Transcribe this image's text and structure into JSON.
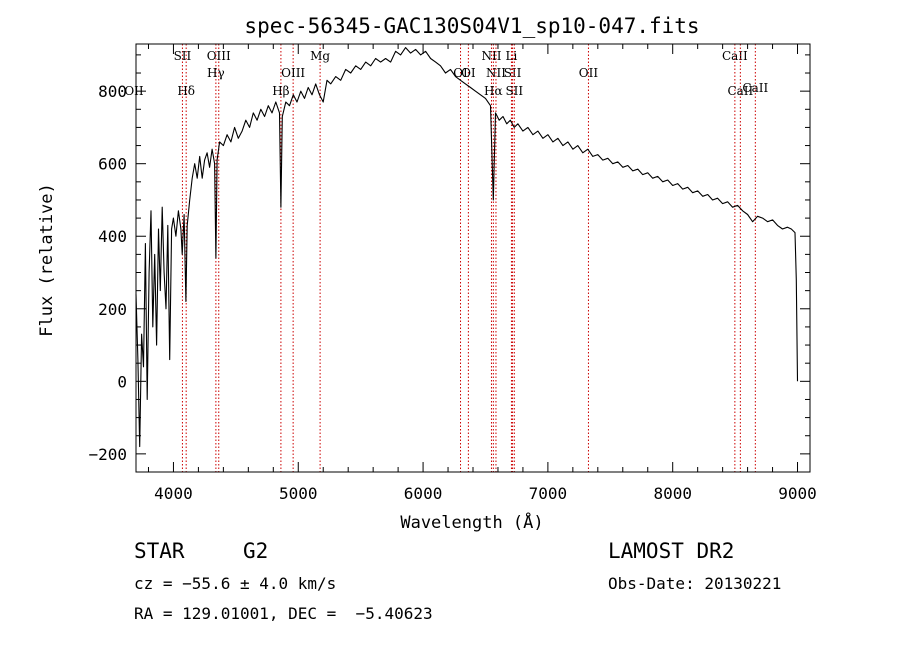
{
  "chart_data": {
    "type": "line",
    "title": "spec-56345-GAC130S04V1_sp10-047.fits",
    "xlabel": "Wavelength (Å)",
    "ylabel": "Flux (relative)",
    "xlim": [
      3700,
      9100
    ],
    "ylim": [
      -250,
      930
    ],
    "xticks": [
      4000,
      5000,
      6000,
      7000,
      8000,
      9000
    ],
    "yticks": [
      -200,
      0,
      200,
      400,
      600,
      800
    ],
    "grid": false,
    "series": [
      {
        "points": [
          [
            3700,
            240
          ],
          [
            3715,
            60
          ],
          [
            3730,
            -180
          ],
          [
            3745,
            130
          ],
          [
            3760,
            40
          ],
          [
            3775,
            380
          ],
          [
            3790,
            -50
          ],
          [
            3805,
            300
          ],
          [
            3820,
            470
          ],
          [
            3835,
            150
          ],
          [
            3850,
            350
          ],
          [
            3865,
            100
          ],
          [
            3880,
            420
          ],
          [
            3895,
            250
          ],
          [
            3910,
            480
          ],
          [
            3925,
            300
          ],
          [
            3940,
            200
          ],
          [
            3955,
            430
          ],
          [
            3970,
            60
          ],
          [
            3985,
            420
          ],
          [
            4000,
            450
          ],
          [
            4020,
            400
          ],
          [
            4040,
            470
          ],
          [
            4060,
            420
          ],
          [
            4070,
            350
          ],
          [
            4085,
            460
          ],
          [
            4100,
            220
          ],
          [
            4110,
            430
          ],
          [
            4130,
            500
          ],
          [
            4150,
            560
          ],
          [
            4170,
            600
          ],
          [
            4190,
            560
          ],
          [
            4210,
            620
          ],
          [
            4230,
            560
          ],
          [
            4250,
            610
          ],
          [
            4270,
            630
          ],
          [
            4290,
            590
          ],
          [
            4310,
            640
          ],
          [
            4330,
            600
          ],
          [
            4340,
            340
          ],
          [
            4350,
            610
          ],
          [
            4370,
            660
          ],
          [
            4400,
            650
          ],
          [
            4430,
            680
          ],
          [
            4460,
            660
          ],
          [
            4490,
            700
          ],
          [
            4520,
            670
          ],
          [
            4550,
            690
          ],
          [
            4580,
            720
          ],
          [
            4610,
            700
          ],
          [
            4640,
            740
          ],
          [
            4670,
            720
          ],
          [
            4700,
            750
          ],
          [
            4730,
            730
          ],
          [
            4760,
            760
          ],
          [
            4790,
            740
          ],
          [
            4820,
            770
          ],
          [
            4850,
            740
          ],
          [
            4861,
            480
          ],
          [
            4872,
            730
          ],
          [
            4900,
            770
          ],
          [
            4930,
            760
          ],
          [
            4960,
            790
          ],
          [
            4990,
            770
          ],
          [
            5020,
            800
          ],
          [
            5050,
            780
          ],
          [
            5080,
            810
          ],
          [
            5110,
            790
          ],
          [
            5140,
            820
          ],
          [
            5170,
            790
          ],
          [
            5200,
            770
          ],
          [
            5230,
            830
          ],
          [
            5260,
            820
          ],
          [
            5300,
            840
          ],
          [
            5340,
            830
          ],
          [
            5380,
            860
          ],
          [
            5420,
            850
          ],
          [
            5460,
            870
          ],
          [
            5500,
            860
          ],
          [
            5540,
            880
          ],
          [
            5580,
            870
          ],
          [
            5620,
            890
          ],
          [
            5660,
            880
          ],
          [
            5700,
            890
          ],
          [
            5740,
            880
          ],
          [
            5780,
            910
          ],
          [
            5820,
            900
          ],
          [
            5860,
            920
          ],
          [
            5900,
            905
          ],
          [
            5940,
            915
          ],
          [
            5980,
            900
          ],
          [
            6020,
            910
          ],
          [
            6060,
            890
          ],
          [
            6100,
            880
          ],
          [
            6140,
            870
          ],
          [
            6180,
            850
          ],
          [
            6220,
            860
          ],
          [
            6260,
            840
          ],
          [
            6300,
            830
          ],
          [
            6340,
            820
          ],
          [
            6380,
            810
          ],
          [
            6420,
            800
          ],
          [
            6460,
            790
          ],
          [
            6500,
            780
          ],
          [
            6540,
            760
          ],
          [
            6563,
            500
          ],
          [
            6580,
            740
          ],
          [
            6610,
            720
          ],
          [
            6640,
            730
          ],
          [
            6670,
            710
          ],
          [
            6700,
            720
          ],
          [
            6730,
            700
          ],
          [
            6760,
            710
          ],
          [
            6800,
            690
          ],
          [
            6840,
            700
          ],
          [
            6880,
            680
          ],
          [
            6920,
            690
          ],
          [
            6960,
            670
          ],
          [
            7000,
            680
          ],
          [
            7040,
            660
          ],
          [
            7080,
            670
          ],
          [
            7120,
            650
          ],
          [
            7160,
            660
          ],
          [
            7200,
            640
          ],
          [
            7240,
            650
          ],
          [
            7280,
            630
          ],
          [
            7320,
            640
          ],
          [
            7360,
            620
          ],
          [
            7400,
            625
          ],
          [
            7440,
            610
          ],
          [
            7480,
            615
          ],
          [
            7520,
            600
          ],
          [
            7560,
            605
          ],
          [
            7600,
            590
          ],
          [
            7640,
            595
          ],
          [
            7680,
            580
          ],
          [
            7720,
            585
          ],
          [
            7760,
            570
          ],
          [
            7800,
            575
          ],
          [
            7840,
            560
          ],
          [
            7880,
            565
          ],
          [
            7920,
            550
          ],
          [
            7960,
            555
          ],
          [
            8000,
            540
          ],
          [
            8040,
            545
          ],
          [
            8080,
            530
          ],
          [
            8120,
            535
          ],
          [
            8160,
            520
          ],
          [
            8200,
            525
          ],
          [
            8240,
            510
          ],
          [
            8280,
            515
          ],
          [
            8320,
            500
          ],
          [
            8360,
            505
          ],
          [
            8400,
            490
          ],
          [
            8440,
            495
          ],
          [
            8480,
            480
          ],
          [
            8520,
            485
          ],
          [
            8560,
            470
          ],
          [
            8600,
            460
          ],
          [
            8640,
            440
          ],
          [
            8680,
            455
          ],
          [
            8720,
            450
          ],
          [
            8760,
            440
          ],
          [
            8800,
            445
          ],
          [
            8840,
            430
          ],
          [
            8880,
            420
          ],
          [
            8920,
            425
          ],
          [
            8950,
            420
          ],
          [
            8980,
            410
          ],
          [
            8990,
            280
          ],
          [
            9000,
            0
          ]
        ]
      }
    ],
    "line_markers": [
      {
        "name": "SII",
        "wave": 4072,
        "row": 1
      },
      {
        "name": "Hδ",
        "wave": 4102,
        "row": 2
      },
      {
        "name": "OIII",
        "wave": 4363,
        "row": 1
      },
      {
        "name": "Hγ",
        "wave": 4340,
        "row": 1.5
      },
      {
        "name": "Hβ",
        "wave": 4861,
        "row": 2
      },
      {
        "name": "OIII",
        "wave": 4959,
        "row": 1.5
      },
      {
        "name": "Mg",
        "wave": 5175,
        "row": 1
      },
      {
        "name": "OI",
        "wave": 6300,
        "row": 1.5
      },
      {
        "name": "OI",
        "wave": 6363,
        "row": 1.5
      },
      {
        "name": "NII",
        "wave": 6548,
        "row": 1
      },
      {
        "name": "Li",
        "wave": 6708,
        "row": 1
      },
      {
        "name": "NII",
        "wave": 6584,
        "row": 1.5
      },
      {
        "name": "SII",
        "wave": 6717,
        "row": 1.5
      },
      {
        "name": "Hα",
        "wave": 6563,
        "row": 2
      },
      {
        "name": "SII",
        "wave": 6731,
        "row": 2
      },
      {
        "name": "OII",
        "wave": 7325,
        "row": 1.5
      },
      {
        "name": "CaII",
        "wave": 8498,
        "row": 1
      },
      {
        "name": "CaII",
        "wave": 8542,
        "row": 2
      },
      {
        "name": "CaII",
        "wave": 8662,
        "row": 0
      }
    ],
    "edge_labels": {
      "left_y_overlap": "OII"
    },
    "marker_color": "#cc0000"
  },
  "info": {
    "object_type": "STAR",
    "subclass": "G2",
    "survey": "LAMOST DR2",
    "cz": "cz = −55.6 ± 4.0 km/s",
    "obs_date": "Obs-Date: 20130221",
    "coords": "RA = 129.01001, DEC =  −5.40623"
  }
}
